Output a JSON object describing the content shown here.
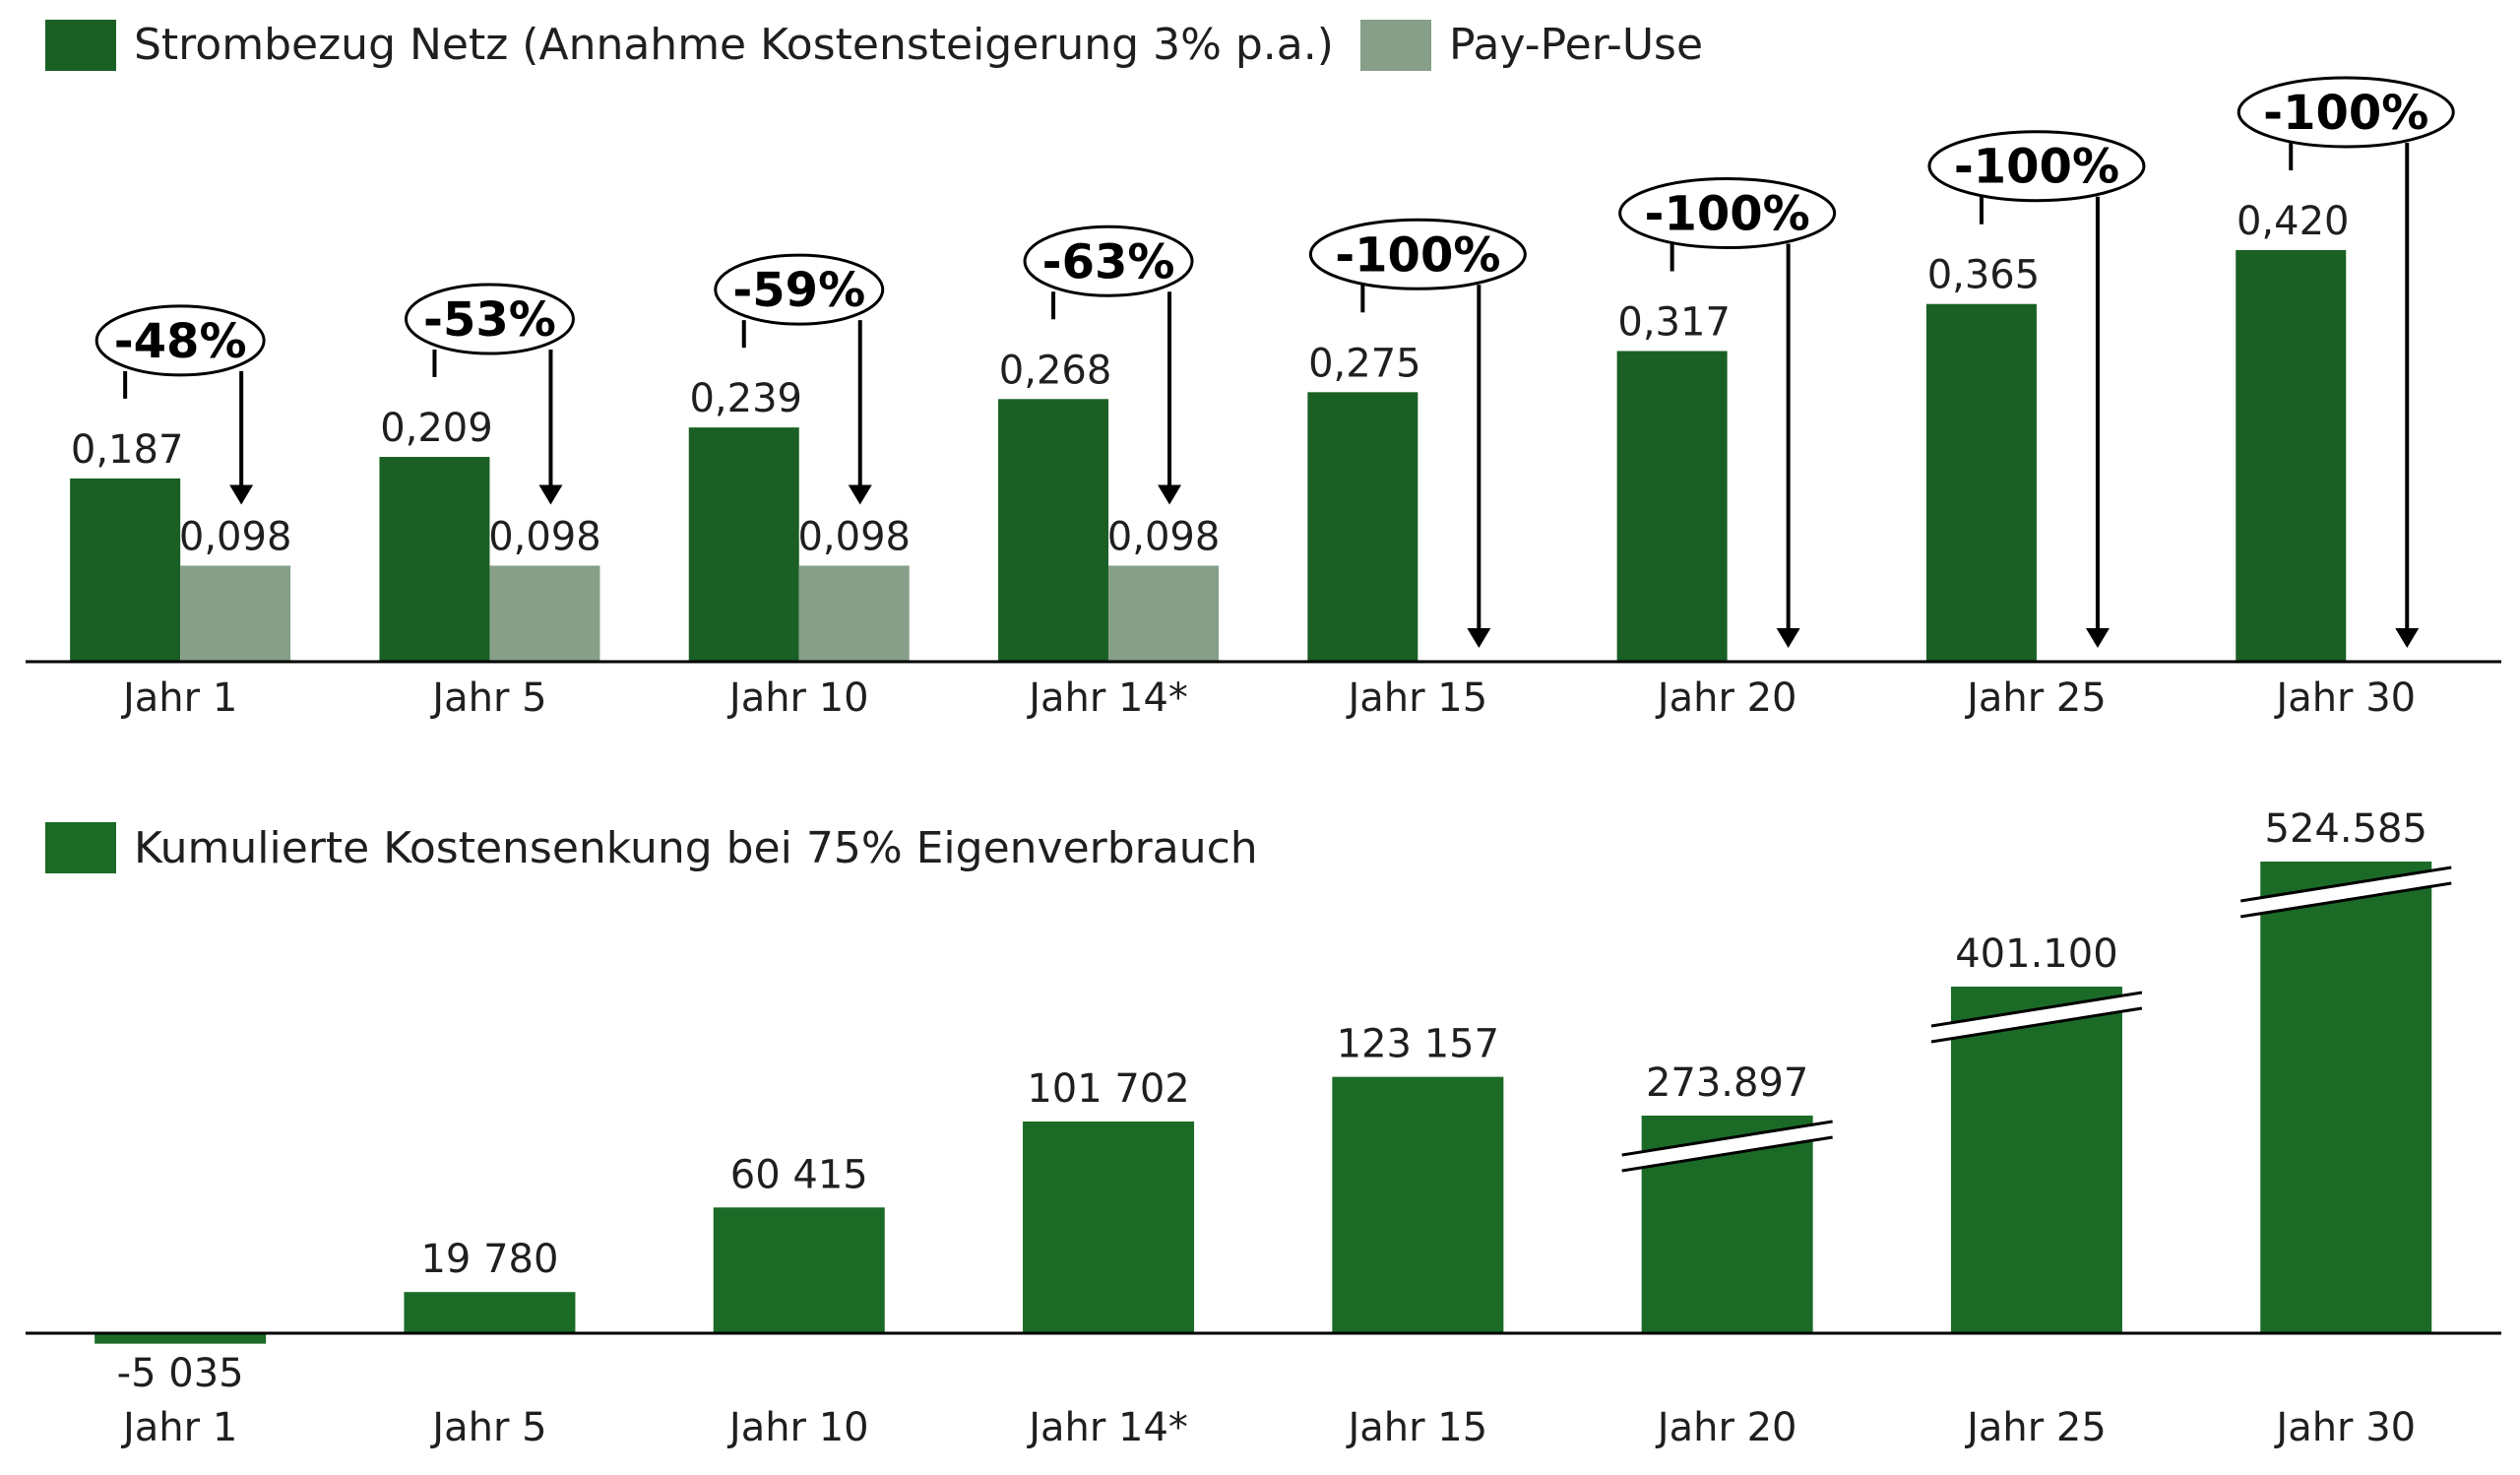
{
  "colors": {
    "dark_green": "#1a6025",
    "mid_green": "#1b6b26",
    "grey_green": "#879f88",
    "axis": "#000000",
    "text": "#1f1f1f"
  },
  "chart_data": [
    {
      "type": "bar",
      "categories": [
        "Jahr 1",
        "Jahr 5",
        "Jahr 10",
        "Jahr 14*",
        "Jahr 15",
        "Jahr 20",
        "Jahr 25",
        "Jahr 30"
      ],
      "series": [
        {
          "name": "Strombezug Netz (Annahme Kostensteigerung 3% p.a.)",
          "values": [
            0.187,
            0.209,
            0.239,
            0.268,
            0.275,
            0.317,
            0.365,
            0.42
          ],
          "labels": [
            "0,187",
            "0,209",
            "0,239",
            "0,268",
            "0,275",
            "0,317",
            "0,365",
            "0,420"
          ]
        },
        {
          "name": "Pay-Per-Use",
          "values": [
            0.098,
            0.098,
            0.098,
            0.098,
            0,
            0,
            0,
            0
          ],
          "labels": [
            "0,098",
            "0,098",
            "0,098",
            "0,098",
            "",
            "",
            "",
            ""
          ]
        }
      ],
      "annotations": [
        "-48%",
        "-53%",
        "-59%",
        "-63%",
        "-100%",
        "-100%",
        "-100%",
        "-100%"
      ],
      "ylim": [
        0,
        0.42
      ],
      "legend": "top-left",
      "grid": false
    },
    {
      "type": "bar",
      "categories": [
        "Jahr 1",
        "Jahr 5",
        "Jahr 10",
        "Jahr 14*",
        "Jahr 15",
        "Jahr 20",
        "Jahr 25",
        "Jahr 30"
      ],
      "series": [
        {
          "name": "Kumulierte Kostensenkung bei 75% Eigenverbrauch",
          "values": [
            -5035,
            19780,
            60415,
            101702,
            123157,
            273897,
            401100,
            524585
          ],
          "labels": [
            "-5 035",
            "19 780",
            "60 415",
            "101 702",
            "123 157",
            "273.897",
            "401.100",
            "524.585"
          ],
          "axis_break": [
            false,
            false,
            false,
            false,
            false,
            true,
            true,
            true
          ]
        }
      ],
      "legend": "top-left",
      "grid": false
    }
  ]
}
